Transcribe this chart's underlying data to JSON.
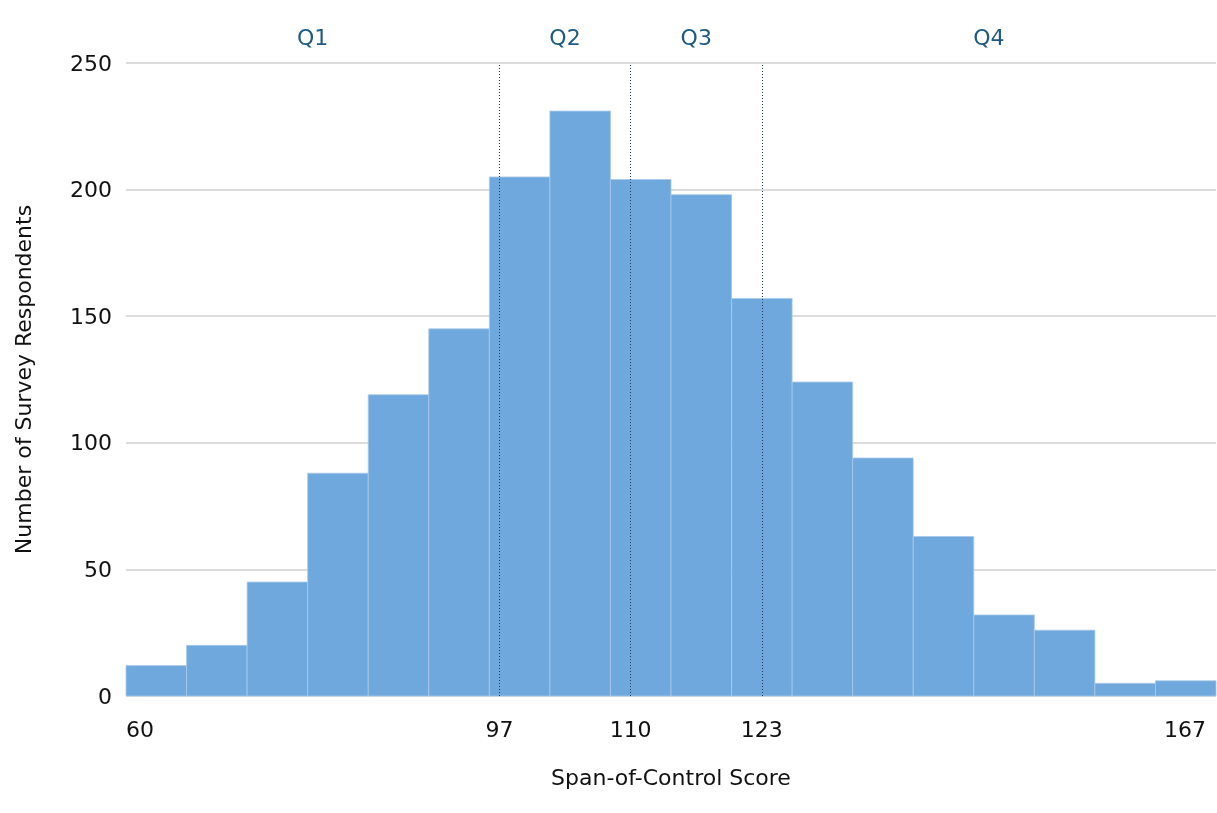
{
  "chart_data": {
    "type": "histogram",
    "xlabel": "Span-of-Control Score",
    "ylabel": "Number of Survey Respondents",
    "bins": [
      60,
      66,
      72,
      78,
      84,
      90,
      96,
      102,
      108,
      114,
      120,
      126,
      132,
      138,
      144,
      150,
      156,
      162,
      168
    ],
    "values": [
      12,
      20,
      45,
      88,
      119,
      145,
      205,
      231,
      204,
      198,
      157,
      124,
      94,
      63,
      32,
      26,
      5,
      6
    ],
    "color": "#6fa8dc",
    "xlim": [
      60,
      168
    ],
    "xticks": [
      60,
      97,
      110,
      123,
      167
    ],
    "ylim": [
      0,
      250
    ],
    "yticks": [
      0,
      50,
      100,
      150,
      200,
      250
    ],
    "grid": "y",
    "ref_lines": [
      {
        "axis": "x",
        "value": 97,
        "color": "#1f3b5a",
        "line_style": "dotted"
      },
      {
        "axis": "x",
        "value": 110,
        "color": "#1f3b5a",
        "line_style": "dotted"
      },
      {
        "axis": "x",
        "value": 123,
        "color": "#1f3b5a",
        "line_style": "dotted"
      }
    ],
    "annotations": [
      "Q1",
      "Q2",
      "Q3",
      "Q4"
    ]
  }
}
